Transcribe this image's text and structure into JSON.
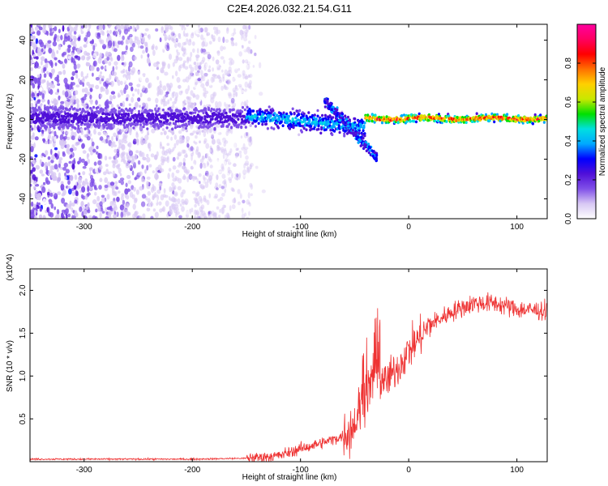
{
  "title": "C2E4.2026.032.21.54.G11",
  "chart_data": [
    {
      "type": "heatmap",
      "xlabel": "Height of straight line (km)",
      "ylabel": "Frequency (Hz)",
      "xlim": [
        -350,
        128
      ],
      "ylim": [
        -50,
        48
      ],
      "xticks": [
        -300,
        -200,
        -100,
        0,
        100
      ],
      "yticks": [
        -40,
        -20,
        0,
        20,
        40
      ],
      "colorbar": {
        "label": "Normalized spectral amplitude",
        "range": [
          0,
          1
        ],
        "ticks": [
          "0.0",
          "0.2",
          "0.4",
          "0.6",
          "0.8"
        ],
        "colors": [
          "#ffffff",
          "#d8c8f4",
          "#8050e8",
          "#5010d8",
          "#0000ff",
          "#00a8ff",
          "#00e0e0",
          "#00e000",
          "#c8e800",
          "#ffd000",
          "#ff7000",
          "#ff0000",
          "#ff0060",
          "#ff00a0"
        ]
      },
      "features": [
        {
          "name": "broadband scatter",
          "x_range": [
            -350,
            -145
          ],
          "freq_range": [
            -50,
            48
          ],
          "amplitude": 0.1
        },
        {
          "name": "main band",
          "x_range": [
            -350,
            128
          ],
          "center_freq_hz": 0.5,
          "peak_amplitude": 0.9
        },
        {
          "name": "dispersed branch",
          "x_range": [
            -78,
            -28
          ],
          "freq_start_hz": 10,
          "freq_end_hz": -20,
          "amplitude": 0.2
        }
      ]
    },
    {
      "type": "line",
      "xlabel": "Height of straight line (km)",
      "ylabel": "SNR (10 * v/v)",
      "y_multiplier": "(x10^4)",
      "xlim": [
        -350,
        128
      ],
      "ylim": [
        0,
        2.25
      ],
      "xticks": [
        -300,
        -200,
        -100,
        0,
        100
      ],
      "yticks": [
        "0.5",
        "1.0",
        "1.5",
        "2.0"
      ],
      "series": [
        {
          "name": "SNR",
          "color": "#ee3333",
          "x": [
            -350,
            -300,
            -250,
            -200,
            -150,
            -120,
            -100,
            -80,
            -60,
            -50,
            -40,
            -30,
            -20,
            -10,
            0,
            10,
            20,
            40,
            60,
            80,
            100,
            128
          ],
          "y": [
            0.03,
            0.03,
            0.03,
            0.03,
            0.04,
            0.07,
            0.15,
            0.22,
            0.3,
            0.45,
            0.8,
            1.05,
            0.95,
            1.1,
            1.3,
            1.45,
            1.6,
            1.75,
            1.85,
            1.85,
            1.78,
            1.76
          ]
        }
      ]
    }
  ]
}
